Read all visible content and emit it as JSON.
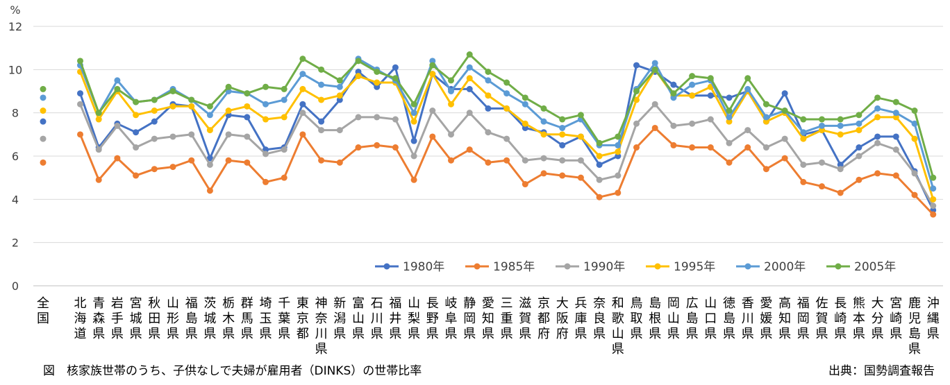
{
  "chart_data": {
    "type": "line",
    "unit_label": "%",
    "ylim": [
      0,
      12
    ],
    "yticks": [
      0,
      2,
      4,
      6,
      8,
      10,
      12
    ],
    "grid": true,
    "legend_position": "bottom-right",
    "national_label": "全国",
    "national_values": {
      "1980年": 7.6,
      "1985年": 5.7,
      "1990年": 6.8,
      "1995年": 8.1,
      "2000年": 8.7,
      "2005年": 9.1
    },
    "categories": [
      "北海道",
      "青森県",
      "岩手県",
      "宮城県",
      "秋田県",
      "山形県",
      "福島県",
      "茨城県",
      "栃木県",
      "群馬県",
      "埼玉県",
      "千葉県",
      "東京都",
      "神奈川県",
      "新潟県",
      "富山県",
      "石川県",
      "福井県",
      "山梨県",
      "長野県",
      "岐阜県",
      "静岡県",
      "愛知県",
      "三重県",
      "滋賀県",
      "京都府",
      "大阪府",
      "兵庫県",
      "奈良県",
      "和歌山県",
      "鳥取県",
      "島根県",
      "岡山県",
      "広島県",
      "山口県",
      "徳島県",
      "香川県",
      "愛媛県",
      "高知県",
      "福岡県",
      "佐賀県",
      "長崎県",
      "熊本県",
      "大分県",
      "宮崎県",
      "鹿児島県",
      "沖縄県"
    ],
    "series": [
      {
        "name": "1980年",
        "color": "#4472C4",
        "values": [
          8.9,
          6.4,
          7.5,
          7.1,
          7.6,
          8.4,
          8.3,
          5.9,
          7.9,
          7.8,
          6.3,
          6.4,
          8.4,
          7.6,
          8.6,
          9.9,
          9.2,
          10.1,
          6.7,
          9.8,
          9.1,
          9.1,
          8.2,
          8.2,
          7.3,
          7.1,
          6.5,
          6.9,
          5.6,
          6.0,
          10.2,
          9.9,
          9.3,
          8.8,
          8.8,
          8.7,
          9.0,
          7.6,
          8.9,
          7.0,
          7.2,
          5.6,
          6.4,
          6.9,
          6.9,
          5.3,
          3.5
        ]
      },
      {
        "name": "1985年",
        "color": "#ED7D31",
        "values": [
          7.0,
          4.9,
          5.9,
          5.1,
          5.4,
          5.5,
          5.8,
          4.4,
          5.8,
          5.7,
          4.8,
          5.0,
          7.0,
          5.8,
          5.7,
          6.4,
          6.5,
          6.4,
          4.9,
          6.9,
          5.8,
          6.3,
          5.7,
          5.8,
          4.7,
          5.2,
          5.1,
          5.0,
          4.1,
          4.3,
          6.4,
          7.3,
          6.5,
          6.4,
          6.4,
          5.7,
          6.4,
          5.4,
          5.9,
          4.8,
          4.6,
          4.3,
          4.9,
          5.2,
          5.1,
          4.2,
          3.3
        ]
      },
      {
        "name": "1990年",
        "color": "#A5A5A5",
        "values": [
          8.4,
          6.3,
          7.4,
          6.4,
          6.8,
          6.9,
          7.0,
          5.6,
          7.0,
          6.9,
          6.1,
          6.3,
          8.0,
          7.2,
          7.2,
          7.8,
          7.8,
          7.7,
          6.0,
          8.1,
          7.0,
          8.0,
          7.1,
          6.8,
          5.8,
          5.9,
          5.8,
          5.8,
          4.9,
          5.1,
          7.5,
          8.4,
          7.4,
          7.5,
          7.7,
          6.6,
          7.2,
          6.4,
          6.8,
          5.6,
          5.7,
          5.4,
          6.0,
          6.6,
          6.3,
          5.2,
          3.7
        ]
      },
      {
        "name": "1995年",
        "color": "#FFC000",
        "values": [
          9.9,
          7.7,
          9.0,
          7.9,
          8.1,
          8.3,
          8.3,
          7.2,
          8.1,
          8.3,
          7.7,
          7.8,
          9.1,
          8.6,
          8.8,
          9.7,
          9.4,
          9.4,
          7.6,
          9.8,
          8.4,
          9.6,
          8.8,
          8.2,
          7.5,
          7.0,
          7.0,
          6.9,
          6.0,
          6.2,
          8.6,
          10.0,
          8.8,
          8.8,
          9.2,
          7.6,
          9.0,
          7.6,
          8.0,
          6.8,
          7.2,
          7.0,
          7.2,
          7.8,
          7.8,
          6.8,
          4.0
        ]
      },
      {
        "name": "2000年",
        "color": "#5B9BD5",
        "values": [
          10.2,
          8.0,
          9.5,
          8.5,
          8.6,
          9.1,
          8.6,
          7.9,
          9.0,
          8.9,
          8.4,
          8.6,
          9.8,
          9.3,
          9.2,
          10.5,
          10.0,
          9.5,
          8.0,
          10.4,
          9.0,
          10.1,
          9.5,
          8.9,
          8.4,
          7.6,
          7.3,
          7.7,
          6.5,
          6.5,
          9.1,
          10.3,
          8.7,
          9.3,
          9.5,
          7.8,
          9.1,
          7.8,
          8.1,
          7.1,
          7.4,
          7.4,
          7.5,
          8.2,
          8.0,
          7.5,
          4.5
        ]
      },
      {
        "name": "2005年",
        "color": "#70AD47",
        "values": [
          10.4,
          8.0,
          9.1,
          8.5,
          8.6,
          9.0,
          8.6,
          8.3,
          9.2,
          8.9,
          9.2,
          9.1,
          10.5,
          10.0,
          9.5,
          10.4,
          9.9,
          9.6,
          8.4,
          10.2,
          9.5,
          10.7,
          9.9,
          9.4,
          8.7,
          8.2,
          7.7,
          7.9,
          6.6,
          6.9,
          9.0,
          10.0,
          8.9,
          9.7,
          9.6,
          8.1,
          9.6,
          8.4,
          8.1,
          7.7,
          7.7,
          7.7,
          7.9,
          8.7,
          8.5,
          8.1,
          5.0
        ]
      }
    ]
  },
  "caption_left": "図　核家族世帯のうち、子供なしで夫婦が雇用者（DINKS）の世帯比率",
  "caption_right": "出典：国勢調査報告"
}
